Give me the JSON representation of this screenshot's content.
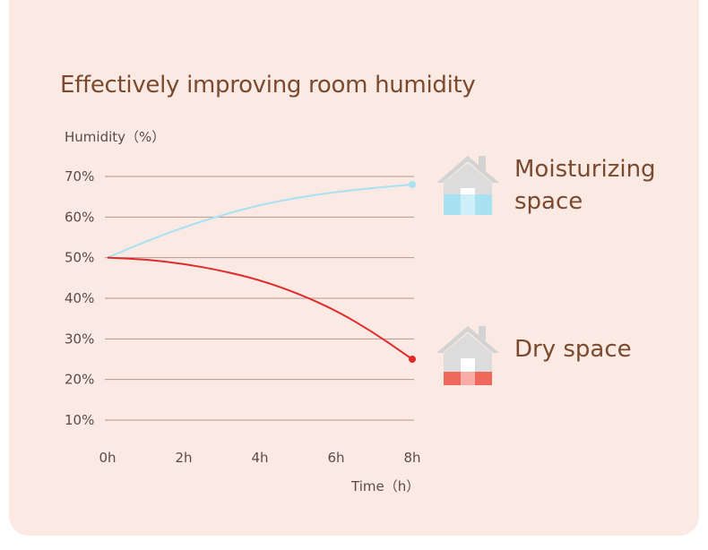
{
  "chart_data": {
    "type": "line",
    "title": "Effectively improving room humidity",
    "ylabel": "Humidity（%）",
    "xlabel": "Time（h）",
    "x": [
      0,
      2,
      4,
      6,
      8
    ],
    "x_tick_labels": [
      "0h",
      "2h",
      "4h",
      "6h",
      "8h"
    ],
    "y_tick_labels": [
      "10%",
      "20%",
      "30%",
      "40%",
      "50%",
      "60%",
      "70%"
    ],
    "y_ticks": [
      10,
      20,
      30,
      40,
      50,
      60,
      70
    ],
    "ylim": [
      10,
      70
    ],
    "xlim": [
      0,
      8
    ],
    "grid": true,
    "series": [
      {
        "name": "Moisturizing space",
        "color": "#a8e2f2",
        "x": [
          0,
          1,
          2,
          3,
          4,
          5,
          6,
          7,
          8
        ],
        "values": [
          50,
          54,
          57.5,
          60.5,
          63,
          64.8,
          66.2,
          67.2,
          68
        ]
      },
      {
        "name": "Dry space",
        "color": "#e02b2b",
        "x": [
          0,
          1,
          2,
          3,
          4,
          5,
          6,
          7,
          8
        ],
        "values": [
          50,
          49.6,
          48.5,
          46.8,
          44.5,
          41.2,
          37,
          31.5,
          25
        ]
      }
    ]
  },
  "legend": {
    "moist_label_line1": "Moisturizing",
    "moist_label_line2": "space",
    "dry_label": "Dry space",
    "moist_icon": "house-moist-icon",
    "dry_icon": "house-dry-icon",
    "house_color": "#d3d3d3",
    "moist_fill": "#a8e2f2",
    "dry_fill": "#f0675c"
  }
}
